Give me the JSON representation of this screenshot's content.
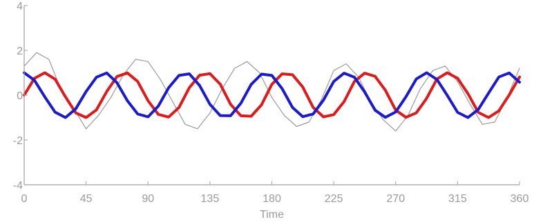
{
  "chart_data": {
    "type": "line",
    "title": "",
    "xlabel": "Time",
    "ylabel": "",
    "xlim": [
      0,
      360
    ],
    "ylim": [
      -4,
      4
    ],
    "x_ticks": [
      0,
      45,
      90,
      135,
      180,
      225,
      270,
      315,
      360
    ],
    "y_ticks": [
      4,
      2,
      0,
      -2,
      -4
    ],
    "grid": false,
    "legend": "none",
    "series": [
      {
        "color": "#9a9a9a",
        "style": "noisy signal",
        "x": [
          0,
          9,
          18,
          27,
          36,
          45,
          54,
          63,
          72,
          81,
          90,
          99,
          108,
          117,
          126,
          135,
          144,
          153,
          162,
          171,
          180,
          189,
          198,
          207,
          216,
          225,
          234,
          243,
          252,
          261,
          270,
          279,
          288,
          297,
          306,
          315,
          324,
          333,
          342,
          351,
          360
        ],
        "values": [
          1.3,
          1.9,
          1.6,
          0.2,
          -0.6,
          -1.5,
          -0.9,
          -0.1,
          0.9,
          1.6,
          1.5,
          0.7,
          -0.3,
          -1.3,
          -1.5,
          -0.8,
          0.3,
          1.2,
          1.5,
          1.0,
          -0.1,
          -0.9,
          -1.4,
          -1.2,
          -0.2,
          1.1,
          1.4,
          0.8,
          -0.3,
          -1.1,
          -1.6,
          -0.9,
          0.3,
          1.1,
          1.3,
          0.6,
          -0.4,
          -1.3,
          -1.2,
          -0.1,
          1.2
        ]
      },
      {
        "color": "#e01a1a",
        "x": [
          0,
          7.5,
          15,
          22.5,
          30,
          37.5,
          45,
          52.5,
          60,
          67.5,
          75,
          82.5,
          90,
          97.5,
          105,
          112.5,
          120,
          127.5,
          135,
          142.5,
          150,
          157.5,
          165,
          172.5,
          180,
          187.5,
          195,
          202.5,
          210,
          217.5,
          225,
          232.5,
          240,
          247.5,
          255,
          262.5,
          270,
          277.5,
          285,
          292.5,
          300,
          307.5,
          315,
          322.5,
          330,
          337.5,
          345,
          352.5,
          360
        ],
        "values": [
          0,
          0.75,
          1,
          0.71,
          -0.08,
          -0.79,
          -1,
          -0.66,
          0.16,
          0.83,
          0.99,
          0.61,
          -0.25,
          -0.86,
          -0.98,
          -0.55,
          0.33,
          0.89,
          0.96,
          0.49,
          -0.41,
          -0.92,
          -0.94,
          -0.43,
          0.48,
          0.95,
          0.91,
          0.36,
          -0.55,
          -0.97,
          -0.87,
          -0.29,
          0.61,
          0.98,
          0.84,
          0.22,
          -0.67,
          -0.99,
          -0.79,
          -0.14,
          0.72,
          1,
          0.75,
          0.07,
          -0.77,
          -1,
          -0.7,
          0.01,
          0.81
        ]
      },
      {
        "color": "#1a1ad0",
        "x": [
          0,
          7.5,
          15,
          22.5,
          30,
          37.5,
          45,
          52.5,
          60,
          67.5,
          75,
          82.5,
          90,
          97.5,
          105,
          112.5,
          120,
          127.5,
          135,
          142.5,
          150,
          157.5,
          165,
          172.5,
          180,
          187.5,
          195,
          202.5,
          210,
          217.5,
          225,
          232.5,
          240,
          247.5,
          255,
          262.5,
          270,
          277.5,
          285,
          292.5,
          300,
          307.5,
          315,
          322.5,
          330,
          337.5,
          345,
          352.5,
          360
        ],
        "values": [
          1,
          0.66,
          -0.08,
          -0.76,
          -1,
          -0.61,
          0.16,
          0.8,
          0.99,
          0.55,
          -0.25,
          -0.84,
          -0.97,
          -0.49,
          0.33,
          0.88,
          0.95,
          0.43,
          -0.41,
          -0.91,
          -0.92,
          -0.36,
          0.48,
          0.94,
          0.88,
          0.29,
          -0.55,
          -0.96,
          -0.84,
          -0.22,
          0.61,
          0.98,
          0.8,
          0.14,
          -0.67,
          -0.99,
          -0.75,
          -0.07,
          0.72,
          1,
          0.7,
          -0.01,
          -0.77,
          -1,
          -0.64,
          0.09,
          0.81,
          0.99,
          0.58
        ]
      }
    ]
  }
}
